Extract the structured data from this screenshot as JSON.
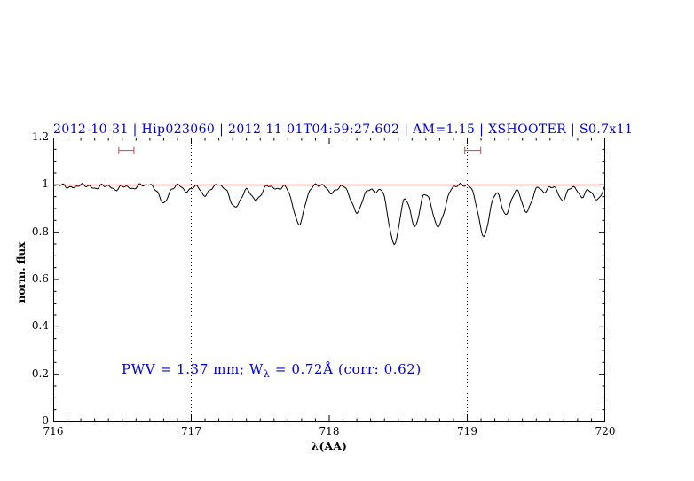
{
  "title": "2012-10-31 | Hip023060 | 2012-11-01T04:59:27.602 | AM=1.15 | XSHOOTER | S0.7x11",
  "annotation": {
    "prefix": "PWV = 1.37 mm; W",
    "sub": "λ",
    "suffix": " = 0.72Å (corr: 0.62)"
  },
  "colors": {
    "title": "#0000cd",
    "annotation": "#0000cd",
    "spectrum": "#000000",
    "continuum": "#cc4444",
    "range_marker": "#cc4444",
    "axis": "#000000",
    "vline": "#000000"
  },
  "chart_data": {
    "type": "line",
    "title": "2012-10-31 | Hip023060 | 2012-11-01T04:59:27.602 | AM=1.15 | XSHOOTER | S0.7x11",
    "xlabel": "λ(AA)",
    "ylabel": "norm. flux",
    "xlim": [
      716,
      720
    ],
    "ylim": [
      0,
      1.2
    ],
    "x_ticks": [
      {
        "v": 716,
        "label": "716"
      },
      {
        "v": 717,
        "label": "717"
      },
      {
        "v": 718,
        "label": "718"
      },
      {
        "v": 719,
        "label": "719"
      },
      {
        "v": 720,
        "label": "720"
      }
    ],
    "y_ticks": [
      {
        "v": 0,
        "label": "0"
      },
      {
        "v": 0.2,
        "label": "0.2"
      },
      {
        "v": 0.4,
        "label": "0.4"
      },
      {
        "v": 0.6,
        "label": "0.6"
      },
      {
        "v": 0.8,
        "label": "0.8"
      },
      {
        "v": 1,
        "label": "1"
      },
      {
        "v": 1.2,
        "label": "1.2"
      }
    ],
    "x_minor_step": 0.1,
    "y_minor_step": 0.05,
    "grid": false,
    "vlines_dotted": [
      717,
      719
    ],
    "continuum_y": 1.0,
    "range_markers": [
      {
        "x_center": 716.53,
        "half_width": 0.055,
        "y": 1.145
      },
      {
        "x_center": 719.04,
        "half_width": 0.058,
        "y": 1.145
      }
    ],
    "spectrum_model": {
      "baseline": 1.0,
      "sample_step": 0.01,
      "noise": {
        "a1": 0.004,
        "f1": 137.7,
        "a2": 0.0035,
        "f2": 89.3,
        "p2": 1.0
      },
      "absorption_lines": [
        {
          "center": 716.13,
          "depth": 0.012,
          "sigma": 0.03
        },
        {
          "center": 716.3,
          "depth": 0.015,
          "sigma": 0.03
        },
        {
          "center": 716.45,
          "depth": 0.02,
          "sigma": 0.03
        },
        {
          "center": 716.57,
          "depth": 0.018,
          "sigma": 0.025
        },
        {
          "center": 716.8,
          "depth": 0.075,
          "sigma": 0.035
        },
        {
          "center": 716.97,
          "depth": 0.03,
          "sigma": 0.025
        },
        {
          "center": 717.1,
          "depth": 0.045,
          "sigma": 0.03
        },
        {
          "center": 717.32,
          "depth": 0.095,
          "sigma": 0.04
        },
        {
          "center": 717.47,
          "depth": 0.065,
          "sigma": 0.035
        },
        {
          "center": 717.62,
          "depth": 0.02,
          "sigma": 0.025
        },
        {
          "center": 717.78,
          "depth": 0.165,
          "sigma": 0.04
        },
        {
          "center": 718.02,
          "depth": 0.035,
          "sigma": 0.03
        },
        {
          "center": 718.2,
          "depth": 0.115,
          "sigma": 0.04
        },
        {
          "center": 718.33,
          "depth": 0.03,
          "sigma": 0.025
        },
        {
          "center": 718.47,
          "depth": 0.25,
          "sigma": 0.04
        },
        {
          "center": 718.62,
          "depth": 0.175,
          "sigma": 0.035
        },
        {
          "center": 718.79,
          "depth": 0.175,
          "sigma": 0.045
        },
        {
          "center": 719.12,
          "depth": 0.215,
          "sigma": 0.04
        },
        {
          "center": 719.28,
          "depth": 0.125,
          "sigma": 0.035
        },
        {
          "center": 719.43,
          "depth": 0.115,
          "sigma": 0.035
        },
        {
          "center": 719.56,
          "depth": 0.03,
          "sigma": 0.025
        },
        {
          "center": 719.69,
          "depth": 0.065,
          "sigma": 0.03
        },
        {
          "center": 719.83,
          "depth": 0.05,
          "sigma": 0.03
        },
        {
          "center": 719.94,
          "depth": 0.065,
          "sigma": 0.03
        }
      ]
    },
    "legend": null
  }
}
